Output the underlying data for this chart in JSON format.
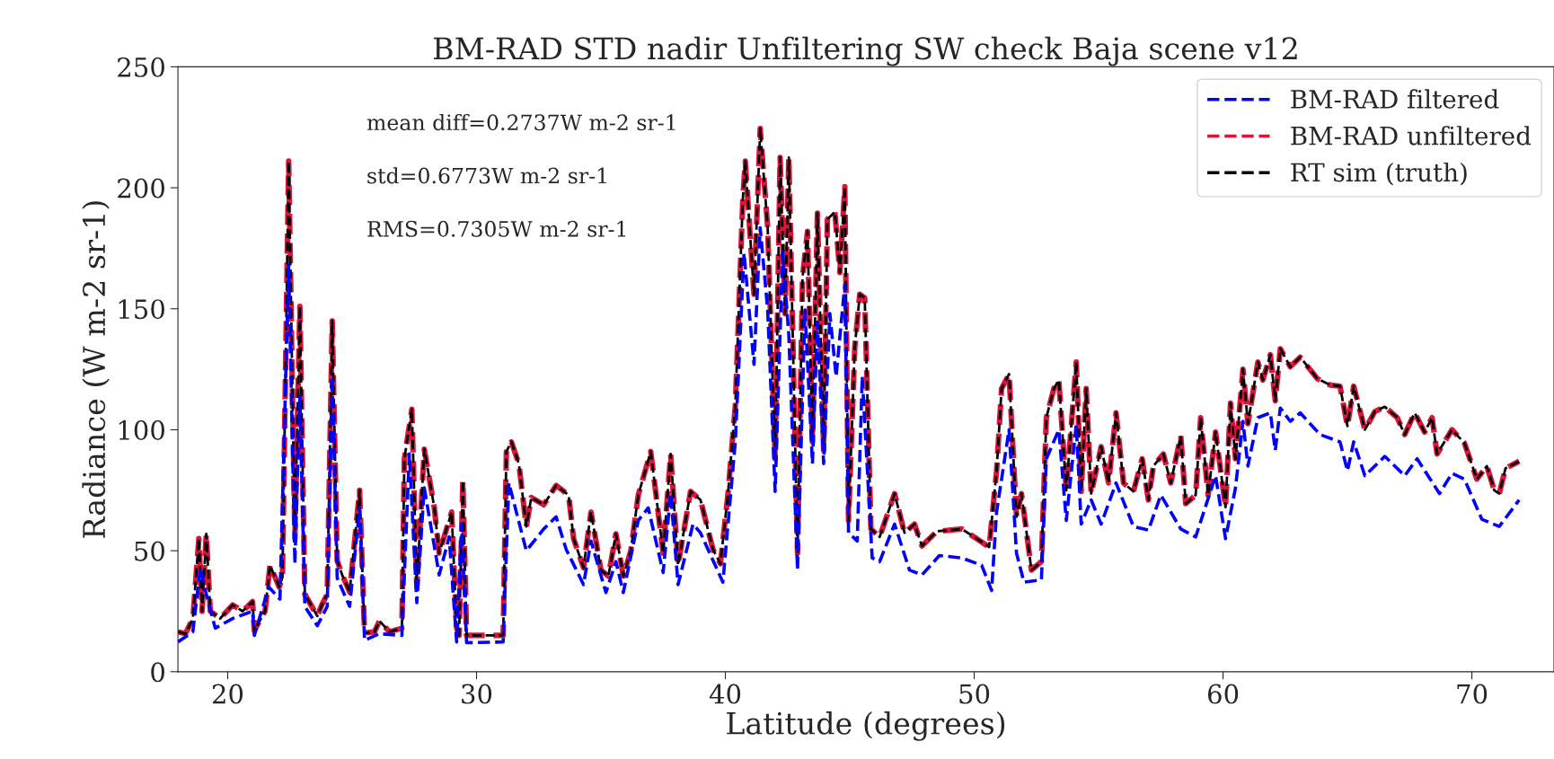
{
  "chart_data": {
    "type": "line",
    "title": "BM-RAD STD nadir Unfiltering SW check Baja scene v12",
    "xlabel": "Latitude (degrees)",
    "ylabel": "Radiance (W m-2 sr-1)",
    "annotations": [
      "mean diff=0.2737W m-2 sr-1",
      "std=0.6773W m-2 sr-1",
      "RMS=0.7305W m-2 sr-1"
    ],
    "xlim": [
      18,
      73.3
    ],
    "xticks": [
      20,
      30,
      40,
      50,
      60,
      70
    ],
    "ylim": [
      0,
      250
    ],
    "yticks": [
      0,
      50,
      100,
      150,
      200,
      250
    ],
    "grid": false,
    "legend": "top right",
    "line_style": "dashed",
    "marker": "none",
    "series": [
      {
        "name": "BM-RAD filtered",
        "color": "#0000ff",
        "x": [
          18.0,
          18.6,
          18.9,
          19.1,
          19.5,
          20.2,
          21.0,
          21.07,
          21.65,
          22.1,
          22.45,
          22.7,
          22.9,
          23.1,
          23.6,
          24.0,
          24.2,
          24.4,
          24.9,
          25.3,
          25.5,
          26.1,
          27.0,
          27.3,
          27.6,
          27.9,
          28.5,
          28.9,
          29.2,
          29.4,
          29.6,
          31.07,
          31.3,
          32.0,
          32.7,
          33.2,
          33.6,
          34.3,
          34.6,
          35.2,
          35.6,
          35.9,
          36.5,
          36.9,
          37.5,
          37.8,
          38.1,
          38.7,
          39.0,
          39.9,
          40.4,
          40.75,
          41.15,
          41.4,
          41.7,
          42.0,
          42.3,
          42.55,
          42.9,
          43.2,
          43.5,
          43.7,
          43.95,
          44.2,
          44.45,
          44.8,
          44.95,
          45.3,
          45.5,
          45.9,
          46.2,
          46.8,
          47.4,
          47.9,
          48.6,
          49.5,
          50.3,
          50.7,
          50.9,
          51.4,
          51.7,
          52.0,
          52.7,
          52.9,
          53.4,
          53.7,
          54.1,
          54.3,
          54.7,
          55.1,
          55.7,
          56.4,
          57.0,
          57.5,
          58.3,
          58.9,
          59.7,
          60.1,
          60.5,
          60.8,
          61.0,
          61.4,
          61.9,
          62.1,
          62.3,
          62.7,
          63.1,
          63.9,
          64.7,
          65.0,
          65.25,
          65.7,
          66.5,
          67.3,
          67.8,
          68.7,
          69.2,
          69.7,
          70.4,
          71.1,
          71.9
        ],
        "values": [
          12.3,
          16.5,
          43,
          33.6,
          18,
          22,
          25,
          15,
          35,
          30,
          168,
          44.6,
          113.7,
          27,
          19,
          27,
          122,
          38.7,
          27,
          67.7,
          13,
          15.7,
          15,
          90,
          28.5,
          76,
          40,
          55.7,
          12.3,
          61,
          12,
          12.3,
          78,
          50,
          59,
          64,
          50.6,
          36,
          54,
          32.7,
          45.5,
          32.7,
          62.5,
          67.7,
          41,
          73.6,
          36,
          61,
          57.4,
          37,
          95,
          173,
          127,
          183.5,
          149.5,
          74.5,
          173,
          139,
          42,
          149.5,
          86,
          144.5,
          86,
          148,
          122,
          160,
          57.4,
          54,
          122,
          47,
          45.5,
          61,
          42,
          40,
          48,
          47,
          44,
          33.6,
          66,
          100,
          49,
          37,
          38,
          88,
          100,
          62.5,
          102,
          61,
          71,
          61,
          78,
          60,
          58.5,
          73,
          59,
          55.7,
          81,
          55,
          76,
          103.5,
          85,
          105,
          107,
          91.5,
          109,
          103.5,
          107,
          98,
          95,
          83,
          95,
          81,
          89,
          81,
          88,
          73.6,
          82,
          79.6,
          63,
          60,
          71
        ]
      },
      {
        "name": "BM-RAD unfiltered",
        "color": "#dc143c",
        "x": [
          18.0,
          18.3,
          18.6,
          18.84,
          18.97,
          19.14,
          19.3,
          19.7,
          20.2,
          20.6,
          21.0,
          21.07,
          21.5,
          21.7,
          22.07,
          22.2,
          22.45,
          22.7,
          22.9,
          23.1,
          23.6,
          23.8,
          24.0,
          24.2,
          24.4,
          24.6,
          24.9,
          25.3,
          25.5,
          25.9,
          26.1,
          26.5,
          27.0,
          27.1,
          27.4,
          27.6,
          27.9,
          28.3,
          28.5,
          29.0,
          29.2,
          29.3,
          29.45,
          29.6,
          31.07,
          31.2,
          31.4,
          31.7,
          32.0,
          32.2,
          32.7,
          33.2,
          33.7,
          33.9,
          34.3,
          34.6,
          35.0,
          35.3,
          35.6,
          35.9,
          36.2,
          36.5,
          37.0,
          37.5,
          37.8,
          38.1,
          38.6,
          39.0,
          39.5,
          39.8,
          40.1,
          40.4,
          40.7,
          40.8,
          41.15,
          41.4,
          41.7,
          42.0,
          42.2,
          42.4,
          42.55,
          42.9,
          43.1,
          43.3,
          43.5,
          43.7,
          43.95,
          44.1,
          44.4,
          44.6,
          44.8,
          44.95,
          45.2,
          45.4,
          45.6,
          45.85,
          46.2,
          46.8,
          47.2,
          47.6,
          47.9,
          48.5,
          49.5,
          50.1,
          50.6,
          50.9,
          51.1,
          51.4,
          51.7,
          51.9,
          52.3,
          52.7,
          52.9,
          53.2,
          53.4,
          53.7,
          54.1,
          54.3,
          54.5,
          54.7,
          55.1,
          55.4,
          55.7,
          56.0,
          56.4,
          56.75,
          57.0,
          57.2,
          57.6,
          57.9,
          58.3,
          58.5,
          58.9,
          59.1,
          59.4,
          59.7,
          60.1,
          60.3,
          60.5,
          60.8,
          61.0,
          61.4,
          61.6,
          61.9,
          62.1,
          62.3,
          62.7,
          63.1,
          63.8,
          64.3,
          64.7,
          65.0,
          65.25,
          65.7,
          66.1,
          66.5,
          67.0,
          67.3,
          67.7,
          68.1,
          68.4,
          68.6,
          69.2,
          69.7,
          70.2,
          70.6,
          70.9,
          71.1,
          71.35,
          71.9
        ],
        "values": [
          16.5,
          15.7,
          22,
          55,
          25,
          57,
          25,
          22,
          27.6,
          25,
          29,
          17,
          25,
          44,
          35,
          39,
          211,
          55,
          151,
          32,
          23,
          28,
          32,
          145,
          46,
          40,
          33,
          75,
          16,
          16.5,
          21,
          16.5,
          18,
          88,
          108.5,
          35,
          92,
          68,
          49,
          66,
          18,
          15,
          79,
          15,
          15,
          91,
          95,
          86,
          60,
          72,
          69,
          77,
          73,
          55,
          43,
          66,
          42,
          39.5,
          57,
          39.5,
          50,
          73,
          91,
          49,
          90,
          44,
          74.5,
          71,
          50.6,
          44.6,
          73,
          110,
          195,
          211,
          156,
          224.5,
          183.5,
          88,
          212.5,
          148,
          212.5,
          49,
          163,
          182,
          95,
          189.5,
          91.5,
          187,
          190,
          165,
          200.5,
          62.5,
          134,
          156,
          154.5,
          59,
          55.7,
          73.6,
          57.4,
          61,
          52,
          58,
          59,
          55,
          51.5,
          83,
          117,
          123,
          64,
          73.6,
          42,
          45.5,
          105,
          117,
          120.5,
          75,
          128,
          74.5,
          117,
          73.6,
          93,
          78,
          107,
          78,
          74.5,
          88,
          71,
          85,
          90,
          78,
          97.5,
          69.5,
          73,
          105,
          73,
          99,
          68,
          111,
          88,
          125,
          102.5,
          128,
          120.5,
          131,
          112,
          133.5,
          126,
          130,
          121,
          118.5,
          118,
          101.5,
          118,
          100,
          107.5,
          109.5,
          105,
          98,
          107,
          99,
          105,
          90,
          100,
          94.5,
          79.6,
          85,
          75,
          73.6,
          84,
          87
        ]
      },
      {
        "name": "RT sim (truth)",
        "color": "#000000",
        "x": [
          18.0,
          18.3,
          18.6,
          18.84,
          18.97,
          19.14,
          19.3,
          19.7,
          20.2,
          20.6,
          21.0,
          21.07,
          21.5,
          21.7,
          22.07,
          22.2,
          22.45,
          22.7,
          22.9,
          23.1,
          23.6,
          23.8,
          24.0,
          24.2,
          24.4,
          24.6,
          24.9,
          25.3,
          25.5,
          25.9,
          26.1,
          26.5,
          27.0,
          27.1,
          27.4,
          27.6,
          27.9,
          28.3,
          28.5,
          29.0,
          29.2,
          29.3,
          29.45,
          29.6,
          31.07,
          31.2,
          31.4,
          31.7,
          32.0,
          32.2,
          32.7,
          33.2,
          33.7,
          33.9,
          34.3,
          34.6,
          35.0,
          35.3,
          35.6,
          35.9,
          36.2,
          36.5,
          37.0,
          37.5,
          37.8,
          38.1,
          38.6,
          39.0,
          39.5,
          39.8,
          40.1,
          40.4,
          40.7,
          40.8,
          41.15,
          41.4,
          41.7,
          42.0,
          42.2,
          42.4,
          42.55,
          42.9,
          43.1,
          43.3,
          43.5,
          43.7,
          43.95,
          44.1,
          44.4,
          44.6,
          44.8,
          44.95,
          45.2,
          45.4,
          45.6,
          45.85,
          46.2,
          46.8,
          47.2,
          47.6,
          47.9,
          48.5,
          49.5,
          50.1,
          50.6,
          50.9,
          51.1,
          51.4,
          51.7,
          51.9,
          52.3,
          52.7,
          52.9,
          53.2,
          53.4,
          53.7,
          54.1,
          54.3,
          54.5,
          54.7,
          55.1,
          55.4,
          55.7,
          56.0,
          56.4,
          56.75,
          57.0,
          57.2,
          57.6,
          57.9,
          58.3,
          58.5,
          58.9,
          59.1,
          59.4,
          59.7,
          60.1,
          60.3,
          60.5,
          60.8,
          61.0,
          61.4,
          61.6,
          61.9,
          62.1,
          62.3,
          62.7,
          63.1,
          63.8,
          64.3,
          64.7,
          65.0,
          65.25,
          65.7,
          66.1,
          66.5,
          67.0,
          67.3,
          67.7,
          68.1,
          68.4,
          68.6,
          69.2,
          69.7,
          70.2,
          70.6,
          70.9,
          71.1,
          71.35,
          71.9
        ],
        "values": [
          16.5,
          15.7,
          22,
          55,
          25,
          57,
          25,
          22,
          27.6,
          25,
          29,
          17,
          25,
          44,
          35,
          39,
          211,
          55,
          151,
          32,
          23,
          28,
          32,
          145,
          46,
          40,
          33,
          75,
          16,
          16.5,
          21,
          16.5,
          18,
          88,
          108.5,
          35,
          92,
          68,
          49,
          66,
          18,
          15,
          79,
          15,
          15,
          91,
          95,
          86,
          60,
          72,
          69,
          77,
          73,
          55,
          43,
          66,
          42,
          39.5,
          57,
          39.5,
          50,
          73,
          91,
          49,
          90,
          44,
          74.5,
          71,
          50.6,
          44.6,
          73,
          110,
          195,
          211,
          156,
          224.5,
          183.5,
          88,
          212.5,
          148,
          212.5,
          49,
          163,
          182,
          95,
          189.5,
          91.5,
          187,
          190,
          165,
          200.5,
          62.5,
          134,
          156,
          154.5,
          59,
          55.7,
          73.6,
          57.4,
          61,
          52,
          58,
          59,
          55,
          51.5,
          83,
          117,
          123,
          64,
          73.6,
          42,
          45.5,
          105,
          117,
          120.5,
          75,
          128,
          74.5,
          117,
          73.6,
          93,
          78,
          107,
          78,
          74.5,
          88,
          71,
          85,
          90,
          78,
          97.5,
          69.5,
          73,
          105,
          73,
          99,
          68,
          111,
          88,
          125,
          102.5,
          128,
          120.5,
          131,
          112,
          133.5,
          126,
          130,
          121,
          118.5,
          118,
          101.5,
          118,
          100,
          107.5,
          109.5,
          105,
          98,
          107,
          99,
          105,
          90,
          100,
          94.5,
          79.6,
          85,
          75,
          73.6,
          84,
          87
        ]
      }
    ]
  }
}
